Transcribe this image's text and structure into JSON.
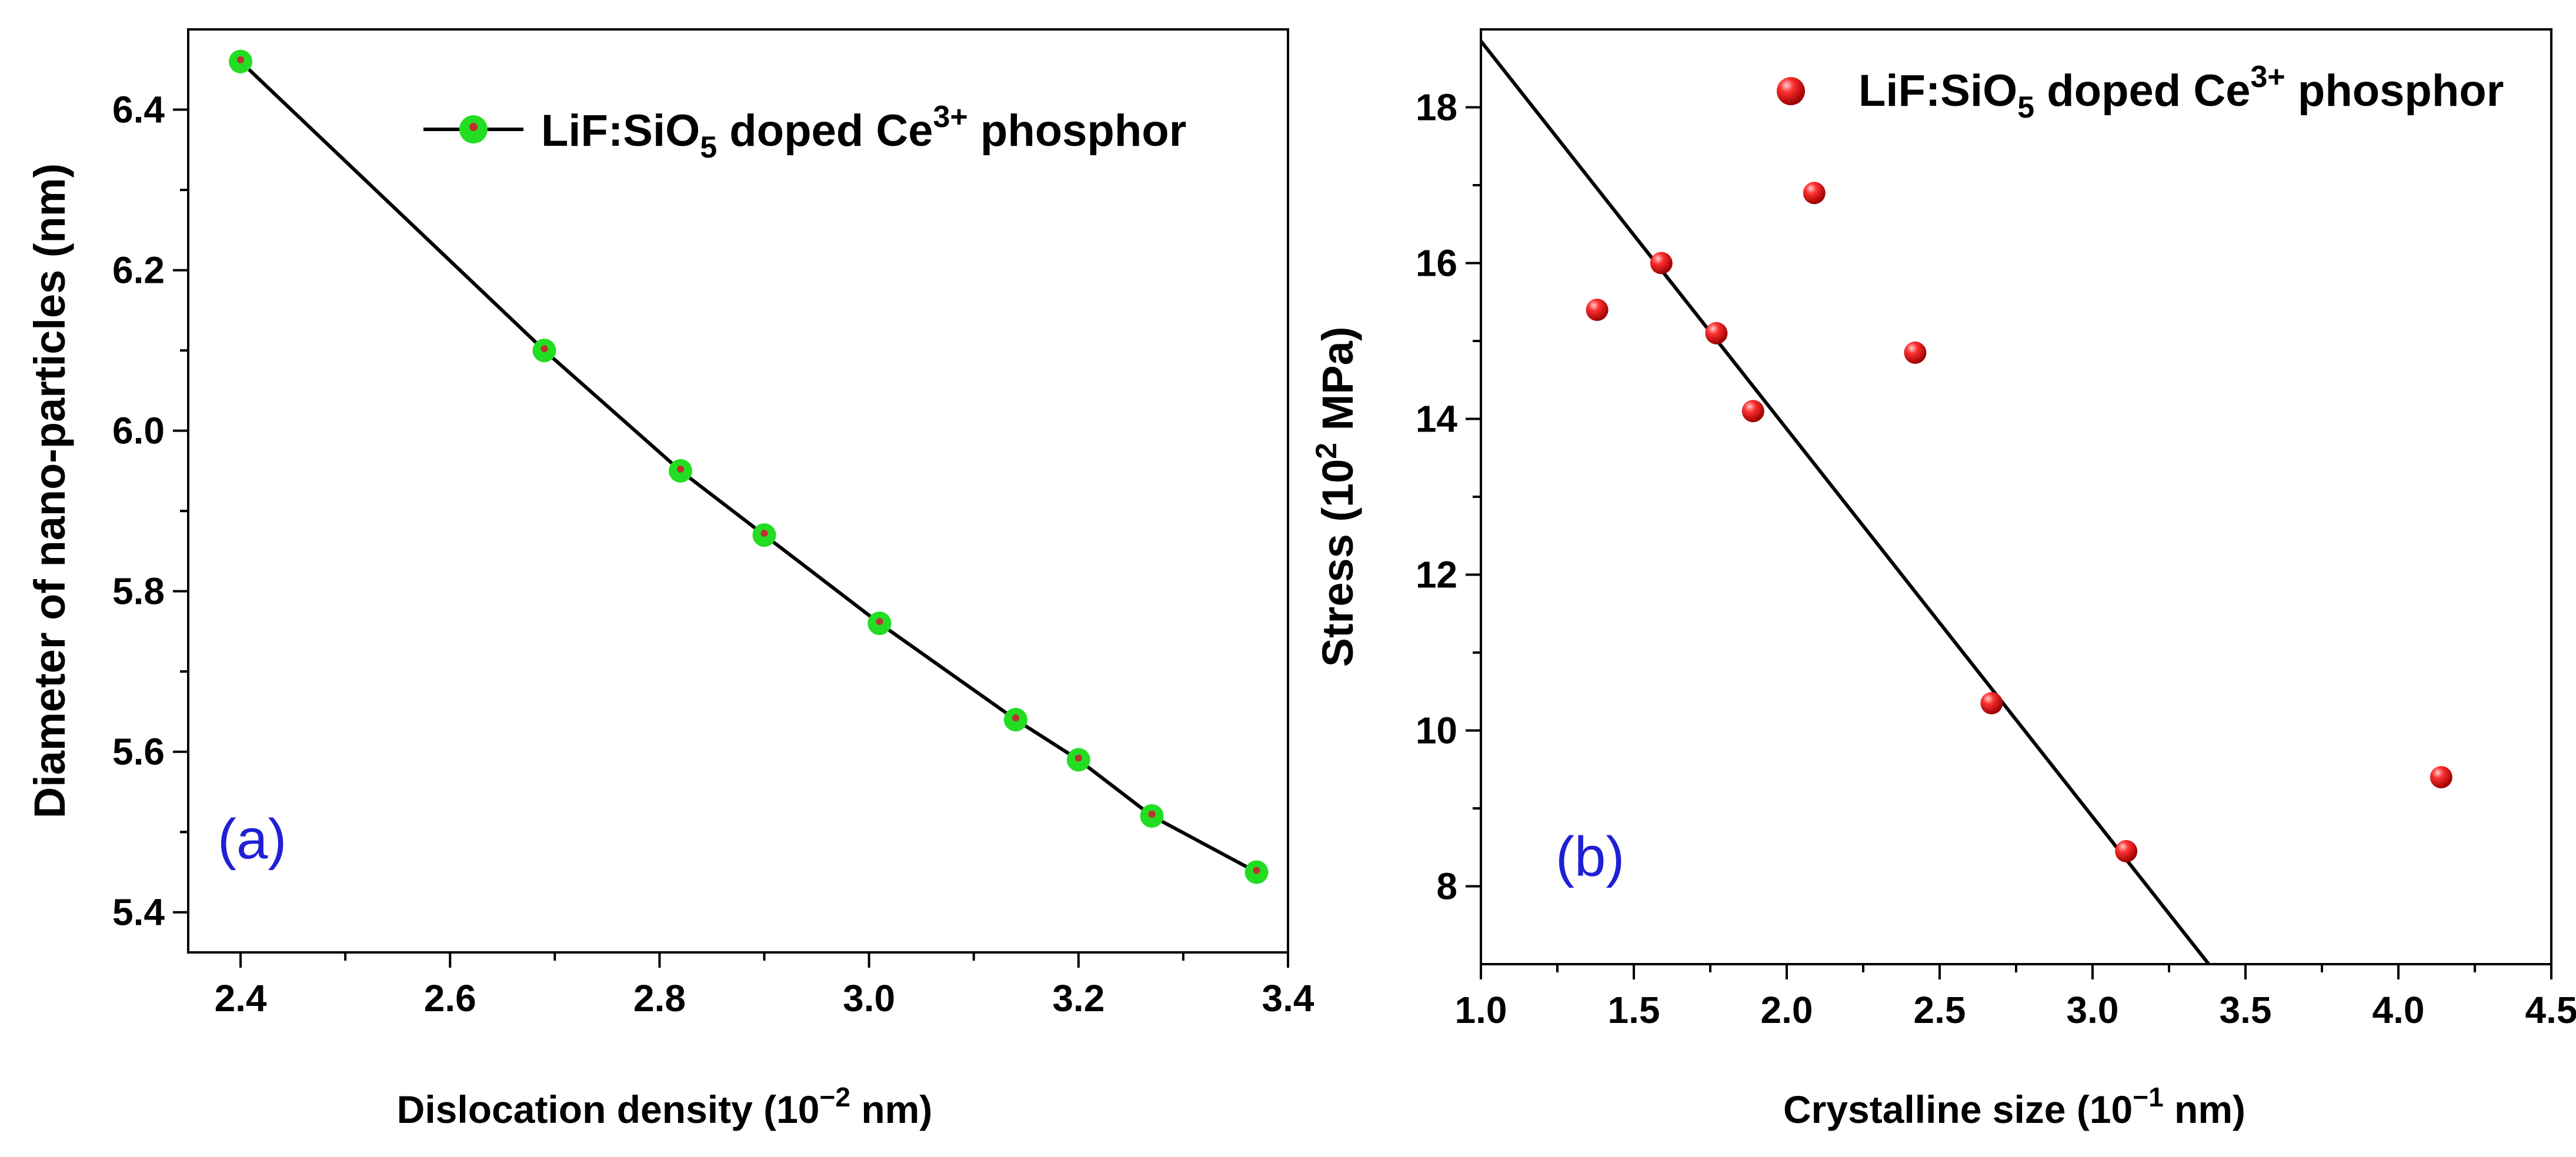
{
  "chart_data": [
    {
      "type": "line",
      "panel_label": "(a)",
      "xlabel": "Dislocation density (10",
      "xlabel_exp": "−2",
      "xlabel_unit": " nm)",
      "ylabel": "Diameter of nano-particles (nm)",
      "xlim": [
        2.35,
        3.4
      ],
      "ylim": [
        5.35,
        6.5
      ],
      "xticks": [
        "2.4",
        "2.6",
        "2.8",
        "3.0",
        "3.2",
        "3.4"
      ],
      "yticks": [
        "5.4",
        "5.6",
        "5.8",
        "6.0",
        "6.2",
        "6.4"
      ],
      "legend": {
        "prefix": "LiF:SiO",
        "sub": "5",
        "mid": " doped Ce",
        "sup": "3+",
        "suffix": " phosphor",
        "position": "top-right"
      },
      "series": [
        {
          "name": "LiF:SiO5 doped Ce3+ phosphor",
          "x": [
            2.4,
            2.69,
            2.82,
            2.9,
            3.01,
            3.14,
            3.2,
            3.27,
            3.37
          ],
          "y": [
            6.46,
            6.1,
            5.95,
            5.87,
            5.76,
            5.64,
            5.59,
            5.52,
            5.45
          ],
          "marker_color": "#22dd22",
          "line_color": "#000000"
        }
      ]
    },
    {
      "type": "scatter",
      "panel_label": "(b)",
      "xlabel": "Crystalline size (10",
      "xlabel_exp": "−1",
      "xlabel_unit": " nm)",
      "ylabel": "Stress (10",
      "ylabel_exp": "2",
      "ylabel_unit": " MPa)",
      "xlim": [
        1.0,
        4.5
      ],
      "ylim": [
        7.0,
        19.0
      ],
      "xticks": [
        "1.0",
        "1.5",
        "2.0",
        "2.5",
        "3.0",
        "3.5",
        "4.0",
        "4.5"
      ],
      "yticks": [
        "8",
        "10",
        "12",
        "14",
        "16",
        "18"
      ],
      "legend": {
        "prefix": "LiF:SiO",
        "sub": "5",
        "mid": " doped Ce",
        "sup": "3+",
        "suffix": " phosphor",
        "position": "top-right"
      },
      "series": [
        {
          "name": "LiF:SiO5 doped Ce3+ phosphor",
          "x": [
            1.38,
            1.59,
            1.77,
            1.89,
            2.09,
            2.42,
            2.67,
            3.11,
            4.14
          ],
          "y": [
            15.4,
            16.0,
            15.1,
            14.1,
            16.9,
            14.85,
            10.35,
            8.45,
            9.4
          ],
          "marker_color": "#e01010"
        }
      ],
      "fit_line": {
        "x": [
          1.0,
          3.38
        ],
        "y": [
          18.85,
          7.0
        ],
        "color": "#000000"
      }
    }
  ]
}
